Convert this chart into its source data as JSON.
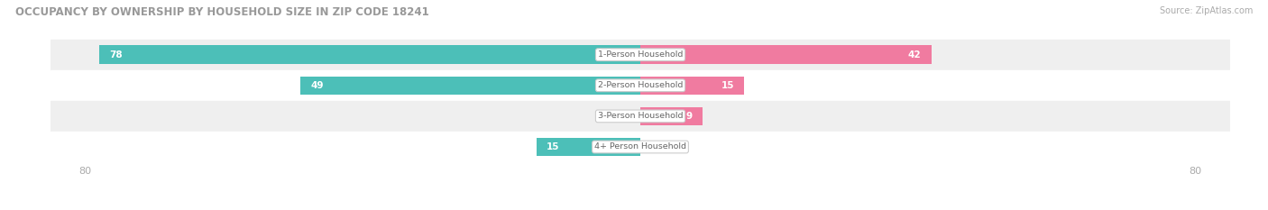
{
  "title": "OCCUPANCY BY OWNERSHIP BY HOUSEHOLD SIZE IN ZIP CODE 18241",
  "source": "Source: ZipAtlas.com",
  "categories": [
    "1-Person Household",
    "2-Person Household",
    "3-Person Household",
    "4+ Person Household"
  ],
  "owner_values": [
    78,
    49,
    0,
    15
  ],
  "renter_values": [
    42,
    15,
    9,
    0
  ],
  "owner_color": "#4CBFB8",
  "renter_color": "#F07BA0",
  "row_bg_colors": [
    "#EFEFEF",
    "#FFFFFF",
    "#EFEFEF",
    "#FFFFFF"
  ],
  "max_val": 80,
  "figsize": [
    14.06,
    2.33
  ],
  "dpi": 100
}
